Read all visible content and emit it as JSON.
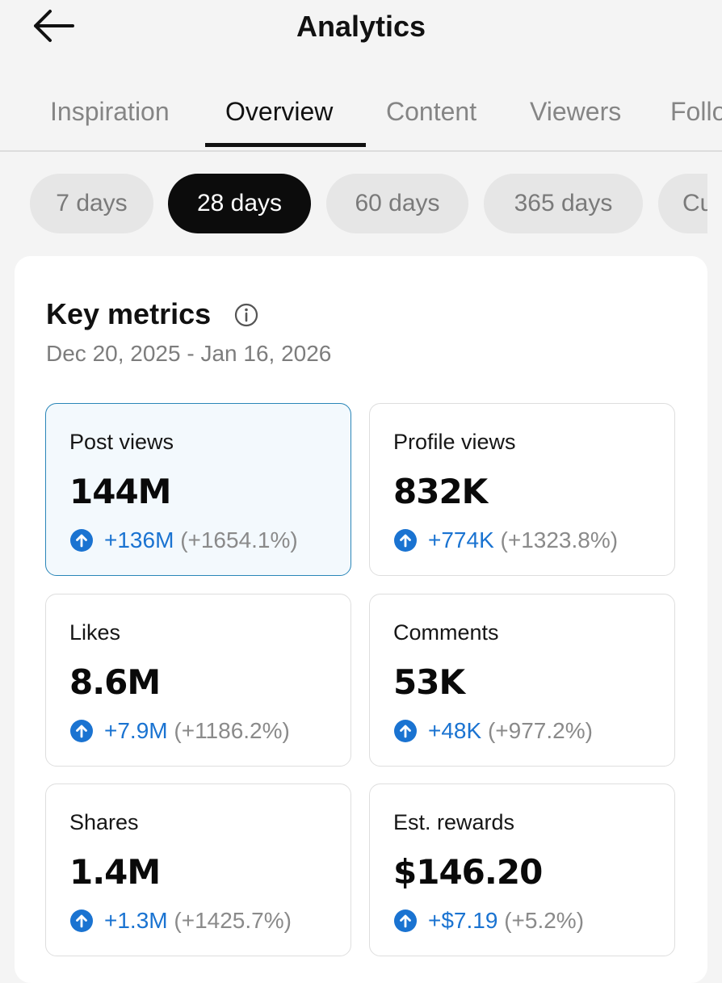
{
  "header": {
    "title": "Analytics"
  },
  "tabs": [
    "Inspiration",
    "Overview",
    "Content",
    "Viewers",
    "Followers"
  ],
  "ranges": [
    "7 days",
    "28 days",
    "60 days",
    "365 days",
    "Custom"
  ],
  "key_metrics": {
    "title": "Key metrics",
    "date_range": "Dec 20, 2025 - Jan 16, 2026",
    "metrics": [
      {
        "label": "Post views",
        "value": "144M",
        "change": "+136M",
        "percent": "(+1654.1%)"
      },
      {
        "label": "Profile views",
        "value": "832K",
        "change": "+774K",
        "percent": "(+1323.8%)"
      },
      {
        "label": "Likes",
        "value": "8.6M",
        "change": "+7.9M",
        "percent": "(+1186.2%)"
      },
      {
        "label": "Comments",
        "value": "53K",
        "change": "+48K",
        "percent": "(+977.2%)"
      },
      {
        "label": "Shares",
        "value": "1.4M",
        "change": "+1.3M",
        "percent": "(+1425.7%)"
      },
      {
        "label": "Est. rewards",
        "value": "$146.20",
        "change": "+$7.19",
        "percent": "(+5.2%)"
      }
    ]
  }
}
